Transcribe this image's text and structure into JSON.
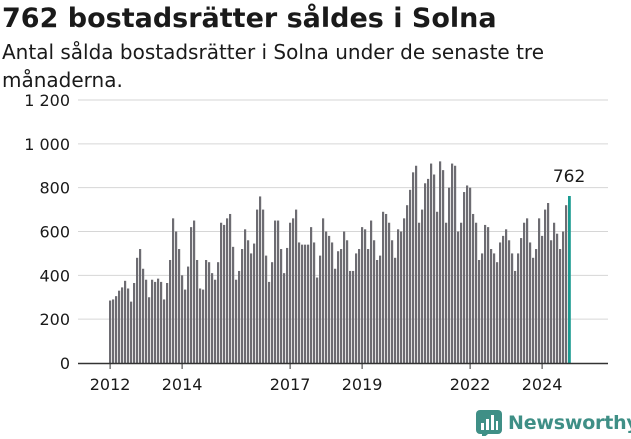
{
  "title": "762 bostadsrätter såldes i Solna",
  "subtitle": "Antal sålda bostadsrätter i Solna under de senaste tre månaderna.",
  "brand": {
    "name": "Newsworthy",
    "logo_icon": "newsworthy-chart-logo-icon"
  },
  "colors": {
    "bar": "#6d6c72",
    "highlight": "#1a9b91",
    "grid": "#d6d6d6",
    "axis": "#333333",
    "text": "#1a1a1a",
    "brand": "#3f8f86"
  },
  "chart_data": {
    "type": "bar",
    "title": "762 bostadsrätter såldes i Solna",
    "subtitle": "Antal sålda bostadsrätter i Solna under de senaste tre månaderna.",
    "xlabel": "",
    "ylabel": "",
    "ylim": [
      0,
      1200
    ],
    "yticks": [
      0,
      200,
      400,
      600,
      800,
      1000,
      1200
    ],
    "ytick_labels": [
      "0",
      "200",
      "400",
      "600",
      "800",
      "1 000",
      "1 200"
    ],
    "xticks": [
      {
        "label": "2012",
        "index": 0
      },
      {
        "label": "2014",
        "index": 24
      },
      {
        "label": "2017",
        "index": 60
      },
      {
        "label": "2019",
        "index": 84
      },
      {
        "label": "2022",
        "index": 120
      },
      {
        "label": "2024",
        "index": 144
      }
    ],
    "grid": true,
    "highlight_label": "762",
    "values": [
      285,
      290,
      305,
      330,
      345,
      375,
      340,
      280,
      365,
      480,
      520,
      430,
      380,
      300,
      380,
      370,
      385,
      370,
      290,
      365,
      470,
      660,
      600,
      520,
      400,
      335,
      440,
      620,
      650,
      470,
      340,
      335,
      470,
      460,
      410,
      380,
      460,
      640,
      630,
      660,
      680,
      530,
      380,
      420,
      520,
      610,
      560,
      500,
      545,
      700,
      760,
      700,
      490,
      370,
      460,
      650,
      650,
      520,
      410,
      525,
      640,
      660,
      700,
      550,
      540,
      540,
      540,
      620,
      550,
      390,
      490,
      660,
      600,
      580,
      550,
      430,
      510,
      520,
      600,
      560,
      420,
      420,
      500,
      520,
      620,
      610,
      520,
      650,
      560,
      470,
      490,
      690,
      680,
      640,
      560,
      480,
      610,
      600,
      660,
      720,
      790,
      870,
      900,
      640,
      700,
      820,
      840,
      910,
      860,
      690,
      920,
      880,
      640,
      800,
      910,
      900,
      600,
      640,
      780,
      810,
      800,
      680,
      640,
      470,
      500,
      630,
      620,
      520,
      500,
      460,
      550,
      580,
      610,
      560,
      500,
      420,
      500,
      570,
      640,
      660,
      550,
      480,
      520,
      660,
      580,
      700,
      730,
      560,
      640,
      590,
      520,
      600,
      720,
      762
    ],
    "series": [
      {
        "name": "",
        "highlight_last": true
      }
    ]
  }
}
